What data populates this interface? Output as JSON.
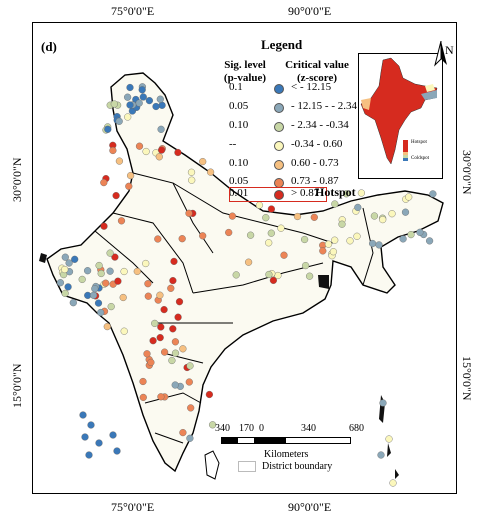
{
  "panel_label": "(d)",
  "lon_labels": [
    "75°0'0\"E",
    "90°0'0\"E"
  ],
  "lat_labels": [
    "30°0'0\"N",
    "15°0'0\"N"
  ],
  "legend": {
    "title": "Legend",
    "sig_header": [
      "Sig. level",
      "(p-value)"
    ],
    "crit_header": [
      "Critical value",
      "(z-score)"
    ],
    "rows": [
      {
        "sig": "0.1",
        "range": "< - 12.15",
        "color": "#3a78b8"
      },
      {
        "sig": "0.05",
        "range": "- 12.15 - - 2.34",
        "color": "#8aa7b8"
      },
      {
        "sig": "0.10",
        "range": "- 2.34 - -0.34",
        "color": "#c8d7a6"
      },
      {
        "sig": "--",
        "range": "-0.34 - 0.60",
        "color": "#fbf7bc"
      },
      {
        "sig": "0.10",
        "range": "0.60 - 0.73",
        "color": "#f6c081"
      },
      {
        "sig": "0.05",
        "range": "0.73 - 0.87",
        "color": "#ec8456"
      },
      {
        "sig": "0.01",
        "range": "> 0.87",
        "color": "#d62b1f"
      }
    ],
    "hotspot_label": "Hotspot"
  },
  "inset": {
    "hot_label": "Hotspot",
    "cold_label": "Coldspot"
  },
  "north_label": "N",
  "scale_bar": {
    "ticks": [
      "340",
      "170",
      "0",
      "340",
      "680"
    ],
    "units": "Kilometers"
  },
  "boundary_label": "District boundary"
}
